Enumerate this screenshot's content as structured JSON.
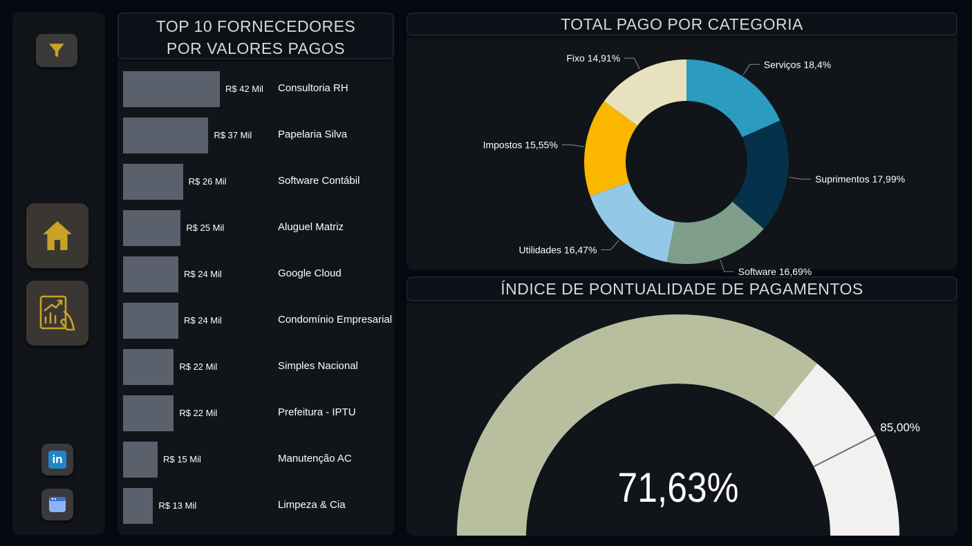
{
  "sidebar": {
    "filter_icon": "filter-icon",
    "home_icon": "home-icon",
    "report_icon": "report-chart-icon",
    "linkedin_icon": "linkedin-icon",
    "linkedin_label": "in",
    "browser_icon": "browser-window-icon",
    "accent_color": "#c9a227"
  },
  "suppliers": {
    "title_line1": "TOP 10 FORNECEDORES",
    "title_line2": "POR VALORES PAGOS"
  },
  "categories": {
    "title": "TOTAL PAGO POR CATEGORIA"
  },
  "punctuality": {
    "title": "ÍNDICE DE PONTUALIDADE DE PAGAMENTOS"
  },
  "chart_data": [
    {
      "type": "bar",
      "orientation": "horizontal",
      "categories": [
        "Consultoria RH",
        "Papelaria Silva",
        "Software Contábil",
        "Aluguel Matriz",
        "Google Cloud",
        "Condomínio Empresarial",
        "Simples Nacional",
        "Prefeitura - IPTU",
        "Manutenção AC",
        "Limpeza & Cia"
      ],
      "values": [
        42,
        37,
        26,
        25,
        24,
        24,
        22,
        22,
        15,
        13
      ],
      "value_labels": [
        "R$ 42 Mil",
        "R$ 37 Mil",
        "R$ 26 Mil",
        "R$ 25 Mil",
        "R$ 24 Mil",
        "R$ 24 Mil",
        "R$ 22 Mil",
        "R$ 22 Mil",
        "R$ 15 Mil",
        "R$ 13 Mil"
      ],
      "unit": "R$ Mil",
      "bar_color": "#5a616c"
    },
    {
      "type": "pie",
      "donut": true,
      "slices": [
        {
          "label": "Serviços",
          "value": 18.4,
          "text": "Serviços 18,4%",
          "color": "#2b9cbf"
        },
        {
          "label": "Suprimentos",
          "value": 17.99,
          "text": "Suprimentos 17,99%",
          "color": "#06314a"
        },
        {
          "label": "Software",
          "value": 16.69,
          "text": "Software 16,69%",
          "color": "#7f9e8a"
        },
        {
          "label": "Utilidades",
          "value": 16.47,
          "text": "Utilidades 16,47%",
          "color": "#93c9e6"
        },
        {
          "label": "Impostos",
          "value": 15.55,
          "text": "Impostos 15,55%",
          "color": "#fbb600"
        },
        {
          "label": "Fixo",
          "value": 14.91,
          "text": "Fixo 14,91%",
          "color": "#e8e1bd"
        }
      ]
    },
    {
      "type": "gauge",
      "value": 71.63,
      "value_label": "71,63%",
      "target": 85.0,
      "target_label": "85,00%",
      "min": 0,
      "max": 100,
      "fill_color": "#b8bf9f",
      "track_color": "#f2f1ef"
    }
  ]
}
